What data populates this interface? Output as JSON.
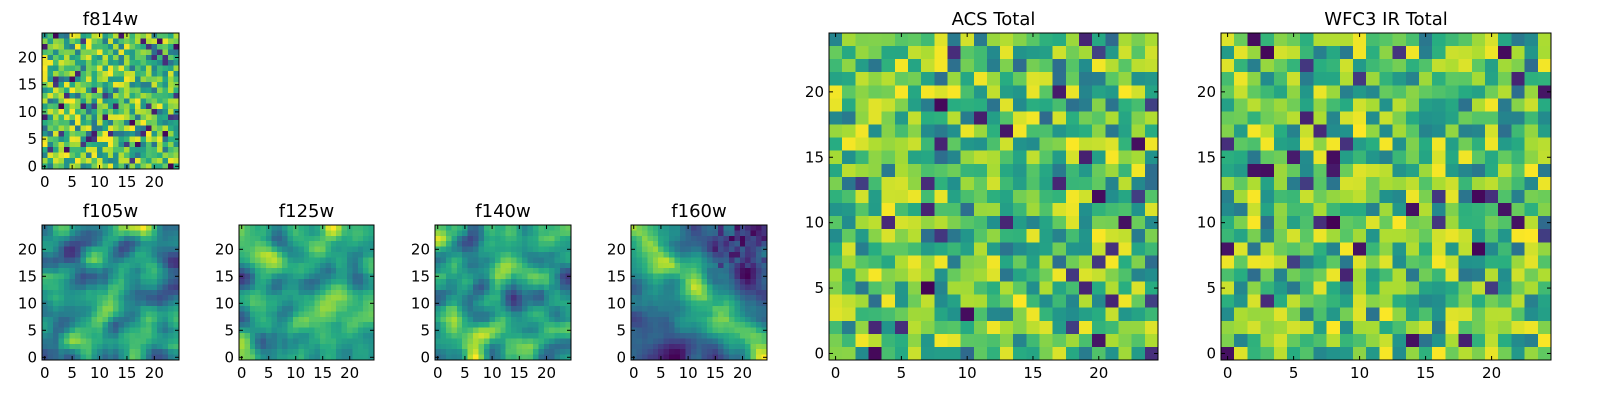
{
  "chart_data": [
    {
      "id": "f814w",
      "type": "heatmap",
      "title": "f814w",
      "grid_size": 25,
      "xlim": [
        -0.5,
        24.5
      ],
      "ylim": [
        -0.5,
        24.5
      ],
      "xticks": [
        0,
        5,
        10,
        15,
        20
      ],
      "yticks": [
        0,
        5,
        10,
        15,
        20
      ],
      "colormap": "viridis",
      "pattern": "noise",
      "seed": 814
    },
    {
      "id": "f105w",
      "type": "heatmap",
      "title": "f105w",
      "grid_size": 25,
      "xlim": [
        -0.5,
        24.5
      ],
      "ylim": [
        -0.5,
        24.5
      ],
      "xticks": [
        0,
        5,
        10,
        15,
        20
      ],
      "yticks": [
        0,
        5,
        10,
        15,
        20
      ],
      "colormap": "viridis",
      "pattern": "smooth",
      "seed": 105
    },
    {
      "id": "f125w",
      "type": "heatmap",
      "title": "f125w",
      "grid_size": 25,
      "xlim": [
        -0.5,
        24.5
      ],
      "ylim": [
        -0.5,
        24.5
      ],
      "xticks": [
        0,
        5,
        10,
        15,
        20
      ],
      "yticks": [
        0,
        5,
        10,
        15,
        20
      ],
      "colormap": "viridis",
      "pattern": "smooth",
      "seed": 125
    },
    {
      "id": "f140w",
      "type": "heatmap",
      "title": "f140w",
      "grid_size": 25,
      "xlim": [
        -0.5,
        24.5
      ],
      "ylim": [
        -0.5,
        24.5
      ],
      "xticks": [
        0,
        5,
        10,
        15,
        20
      ],
      "yticks": [
        0,
        5,
        10,
        15,
        20
      ],
      "colormap": "viridis",
      "pattern": "smooth",
      "seed": 140
    },
    {
      "id": "f160w",
      "type": "heatmap",
      "title": "f160w",
      "grid_size": 25,
      "xlim": [
        -0.5,
        24.5
      ],
      "ylim": [
        -0.5,
        24.5
      ],
      "xticks": [
        0,
        5,
        10,
        15,
        20
      ],
      "yticks": [
        0,
        5,
        10,
        15,
        20
      ],
      "colormap": "viridis",
      "pattern": "diagonal",
      "seed": 160
    },
    {
      "id": "acs-total",
      "type": "heatmap",
      "title": "ACS Total",
      "grid_size": 25,
      "xlim": [
        -0.5,
        24.5
      ],
      "ylim": [
        -0.5,
        24.5
      ],
      "xticks": [
        0,
        5,
        10,
        15,
        20
      ],
      "yticks": [
        0,
        5,
        10,
        15,
        20
      ],
      "colormap": "viridis",
      "pattern": "noise",
      "seed": 901
    },
    {
      "id": "wfc3-ir-total",
      "type": "heatmap",
      "title": "WFC3 IR Total",
      "grid_size": 25,
      "xlim": [
        -0.5,
        24.5
      ],
      "ylim": [
        -0.5,
        24.5
      ],
      "xticks": [
        0,
        5,
        10,
        15,
        20
      ],
      "yticks": [
        0,
        5,
        10,
        15,
        20
      ],
      "colormap": "viridis",
      "pattern": "noise",
      "seed": 902
    }
  ],
  "colors": {
    "cmap_low": "#440154",
    "cmap_mid_low": "#31688e",
    "cmap_mid": "#21918c",
    "cmap_mid_high": "#5ec962",
    "cmap_high": "#fde725"
  }
}
